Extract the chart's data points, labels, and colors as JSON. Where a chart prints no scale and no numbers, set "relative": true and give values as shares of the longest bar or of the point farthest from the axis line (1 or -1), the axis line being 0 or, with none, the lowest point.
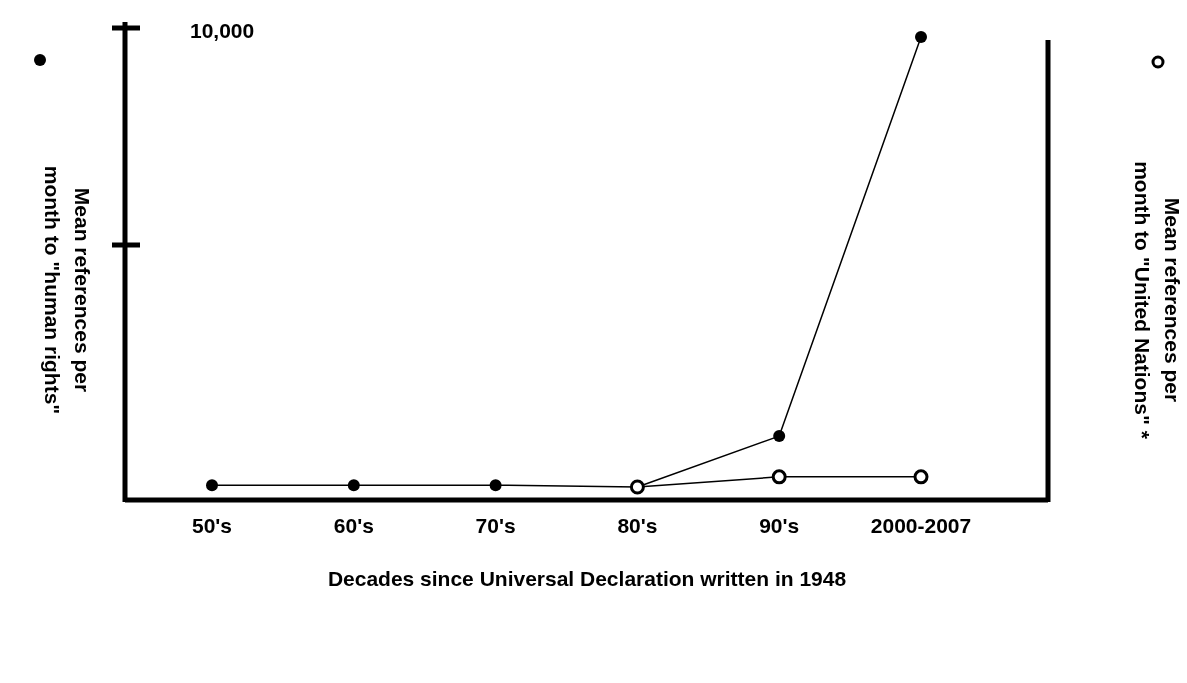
{
  "chart_data": {
    "type": "line",
    "relative": true,
    "categories": [
      "50's",
      "60's",
      "70's",
      "80's",
      "90's",
      "2000-2007"
    ],
    "xlabel": "Decades since Universal Declaration written in 1948",
    "ylabel": "Mean references per\nmonth to \"human rights\"",
    "y2label": "Mean references per\nmonth to \"United Nations\" *",
    "annotations": [
      "10,000"
    ],
    "marker": "circle",
    "series": [
      {
        "color": "#000000",
        "values": [
          0.032,
          0.032,
          0.032,
          0.028,
          0.138,
          1
        ]
      },
      {
        "color": "#000000",
        "axis": "y2",
        "values": [
          null,
          null,
          null,
          0.028,
          0.05,
          0.05
        ]
      }
    ]
  }
}
